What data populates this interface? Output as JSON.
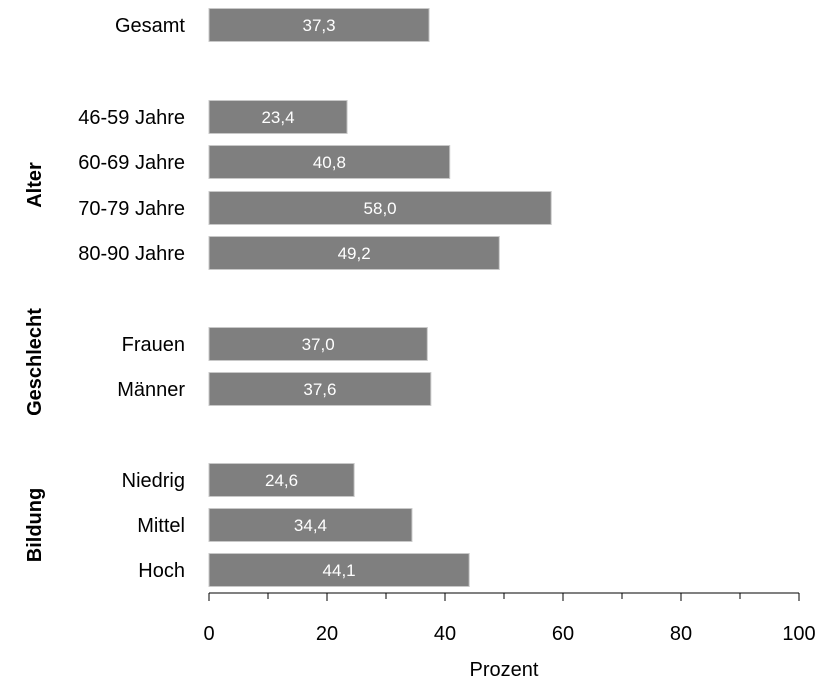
{
  "chart_data": {
    "type": "bar",
    "orientation": "horizontal",
    "groups": [
      {
        "name": "",
        "categories": [
          "Gesamt"
        ],
        "values": [
          37.3
        ],
        "value_labels": [
          "37,3"
        ]
      },
      {
        "name": "Alter",
        "categories": [
          "46-59 Jahre",
          "60-69 Jahre",
          "70-79 Jahre",
          "80-90 Jahre"
        ],
        "values": [
          23.4,
          40.8,
          58.0,
          49.2
        ],
        "value_labels": [
          "23,4",
          "40,8",
          "58,0",
          "49,2"
        ]
      },
      {
        "name": "Geschlecht",
        "categories": [
          "Frauen",
          "Männer"
        ],
        "values": [
          37.0,
          37.6
        ],
        "value_labels": [
          "37,0",
          "37,6"
        ]
      },
      {
        "name": "Bildung",
        "categories": [
          "Niedrig",
          "Mittel",
          "Hoch"
        ],
        "values": [
          24.6,
          34.4,
          44.1
        ],
        "value_labels": [
          "24,6",
          "34,4",
          "44,1"
        ]
      }
    ],
    "xlabel": "Prozent",
    "xlim": [
      0,
      100
    ],
    "xticks": [
      0,
      20,
      40,
      60,
      80,
      100
    ],
    "grid": false,
    "bar_color": "#7f7f7f",
    "value_label_color": "#ffffff"
  }
}
